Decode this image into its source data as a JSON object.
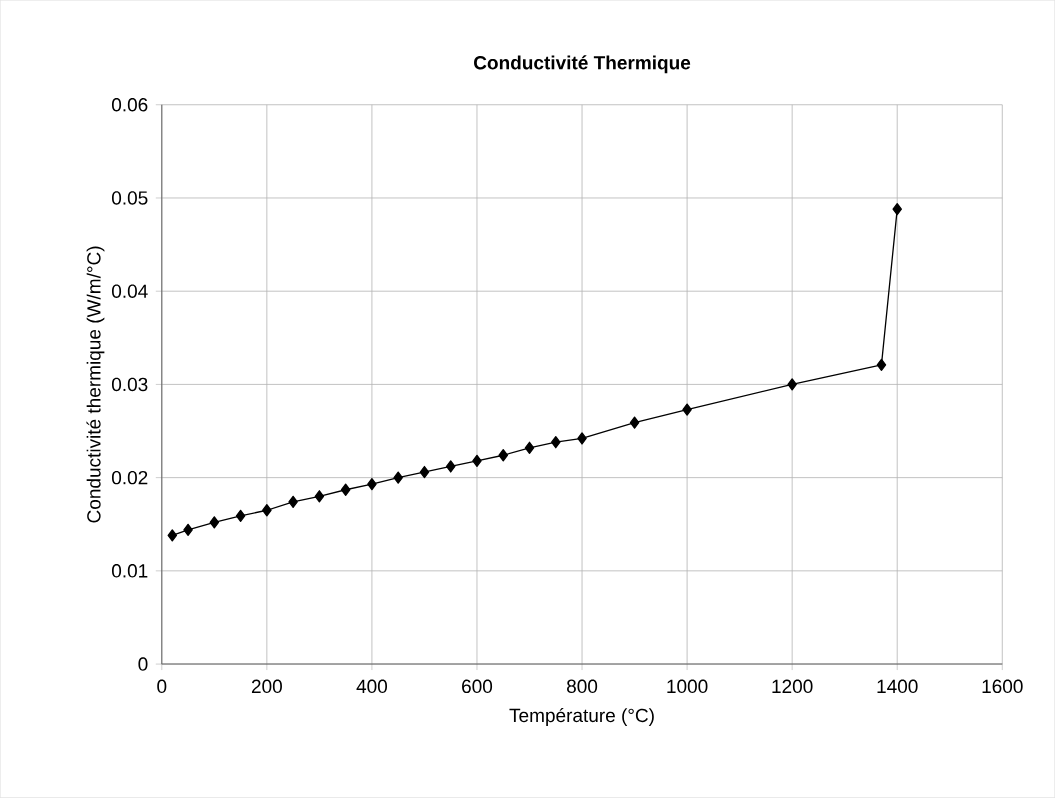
{
  "chart_data": {
    "type": "line",
    "title": "Conductivité Thermique",
    "xlabel": "Température (°C)",
    "ylabel": "Conductivité thermique (W/m/°C)",
    "x": [
      20,
      50,
      100,
      150,
      200,
      250,
      300,
      350,
      400,
      450,
      500,
      550,
      600,
      650,
      700,
      750,
      800,
      900,
      1000,
      1200,
      1370,
      1400
    ],
    "series": [
      {
        "color": "#000000",
        "values": [
          0.0138,
          0.0144,
          0.0152,
          0.0159,
          0.0165,
          0.0174,
          0.018,
          0.0187,
          0.0193,
          0.02,
          0.0206,
          0.0212,
          0.0218,
          0.0224,
          0.0232,
          0.0238,
          0.0242,
          0.0259,
          0.0273,
          0.03,
          0.0321,
          0.0488
        ]
      }
    ],
    "xlim": [
      0,
      1600
    ],
    "ylim": [
      0,
      0.06
    ],
    "xticks": [
      0,
      200,
      400,
      600,
      800,
      1000,
      1200,
      1400,
      1600
    ],
    "yticks": [
      0,
      0.01,
      0.02,
      0.03,
      0.04,
      0.05,
      0.06
    ],
    "grid": true,
    "marker": "diamond",
    "line_style": "solid"
  }
}
